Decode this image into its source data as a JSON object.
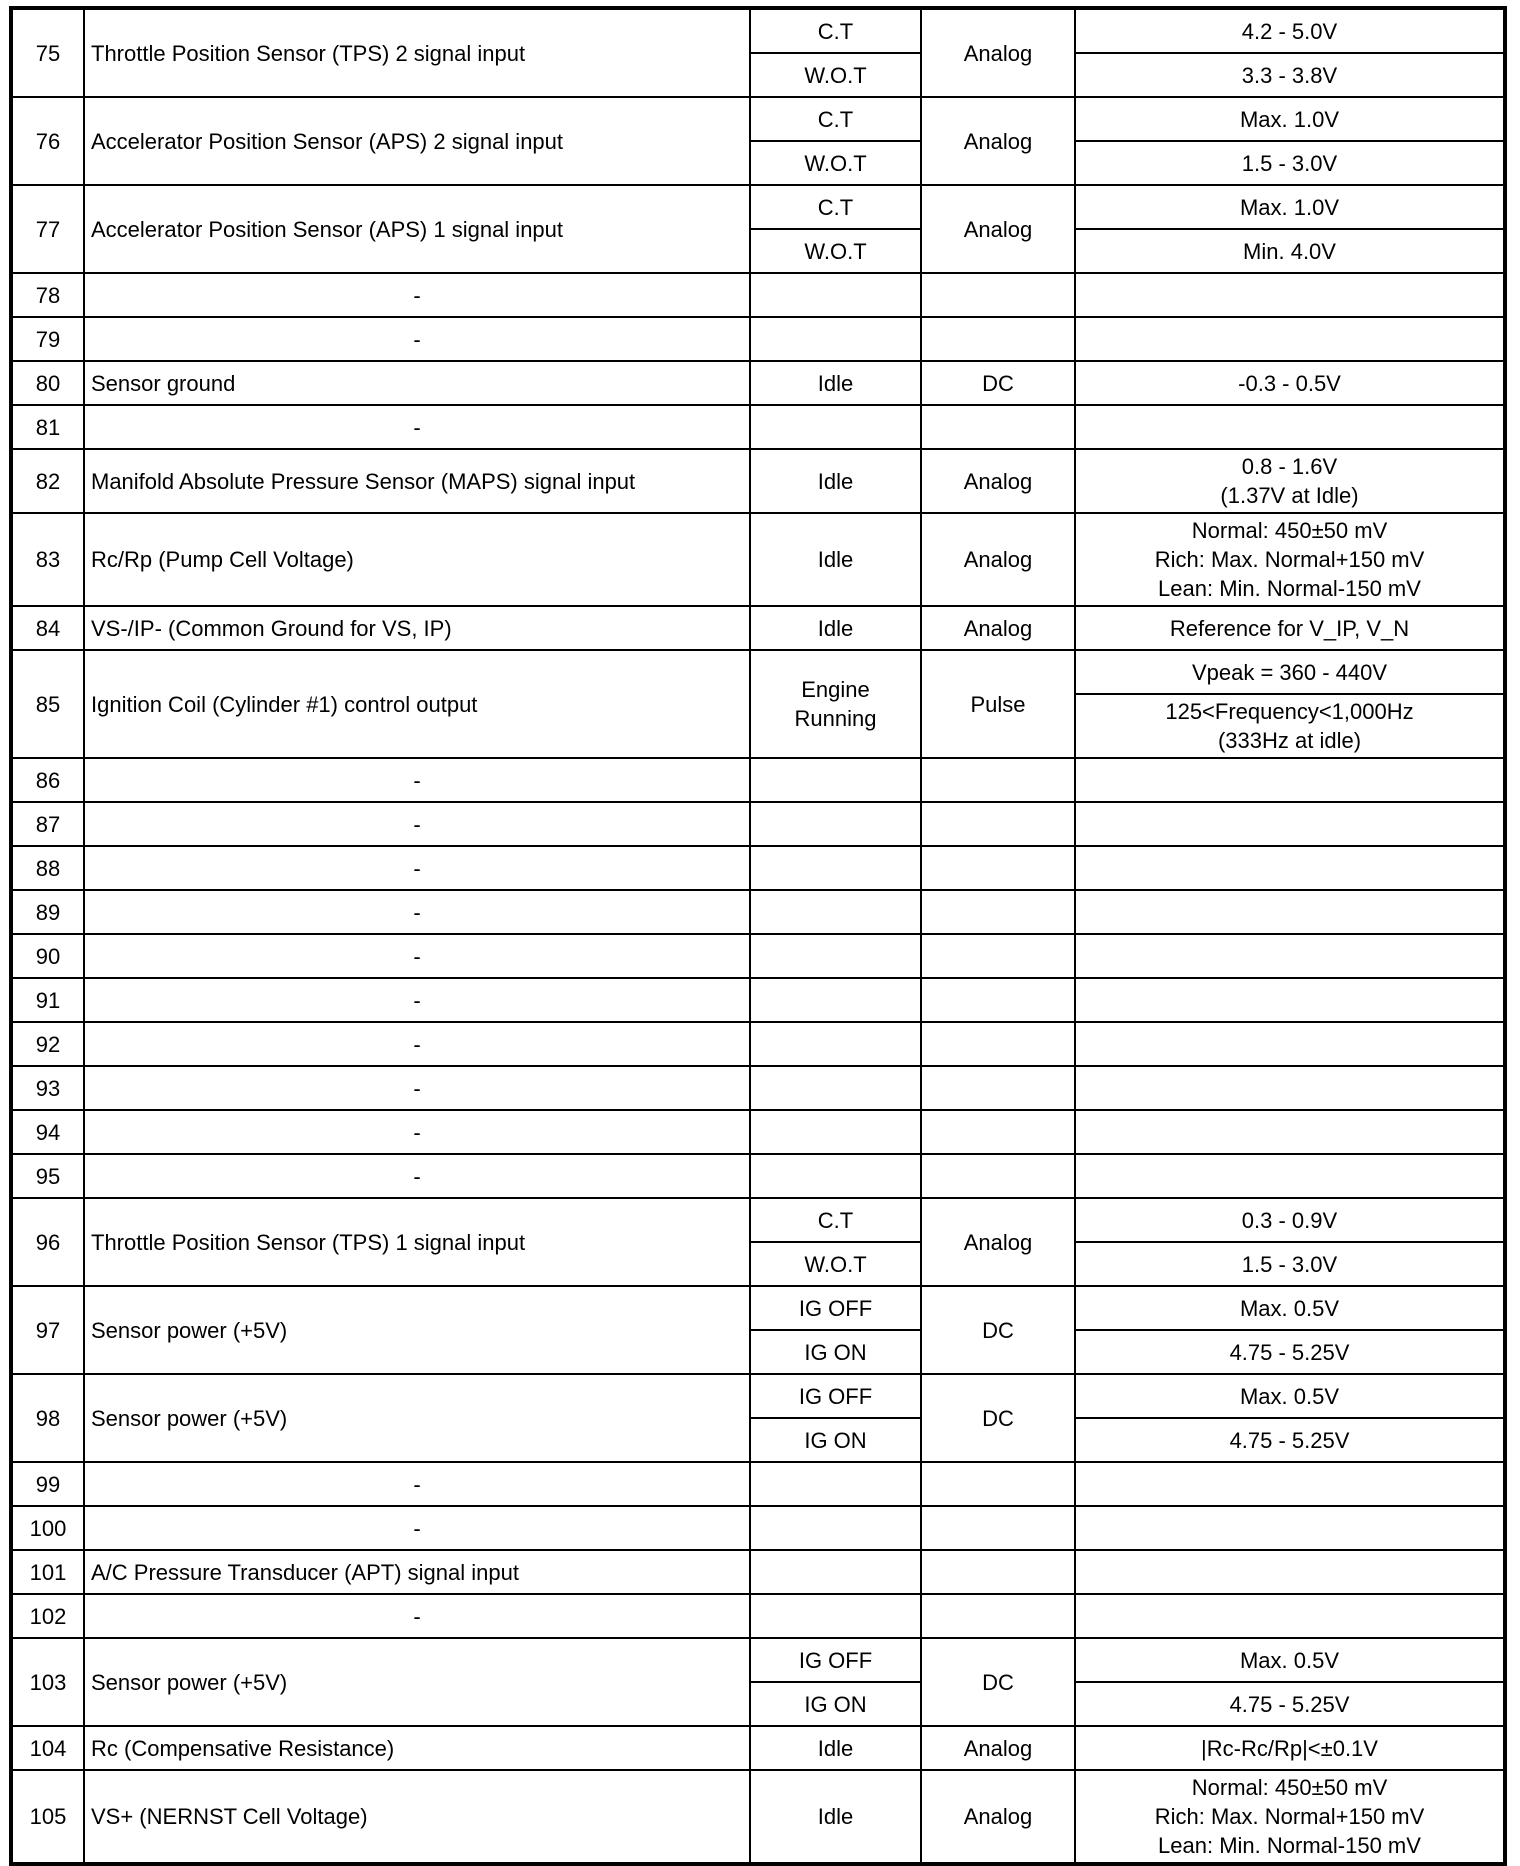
{
  "rows": [
    {
      "pin": "75",
      "desc": "Throttle Position Sensor (TPS) 2 signal input",
      "conditions": [
        "C.T",
        "W.O.T"
      ],
      "type": "Analog",
      "values": [
        "4.2 - 5.0V",
        "3.3 - 3.8V"
      ]
    },
    {
      "pin": "76",
      "desc": "Accelerator Position Sensor (APS) 2 signal input",
      "conditions": [
        "C.T",
        "W.O.T"
      ],
      "type": "Analog",
      "values": [
        "Max. 1.0V",
        "1.5 - 3.0V"
      ]
    },
    {
      "pin": "77",
      "desc": "Accelerator Position Sensor (APS) 1 signal input",
      "conditions": [
        "C.T",
        "W.O.T"
      ],
      "type": "Analog",
      "values": [
        "Max. 1.0V",
        "Min. 4.0V"
      ]
    },
    {
      "pin": "78",
      "desc": "-",
      "conditions": [
        ""
      ],
      "type": "",
      "values": [
        ""
      ]
    },
    {
      "pin": "79",
      "desc": "-",
      "conditions": [
        ""
      ],
      "type": "",
      "values": [
        ""
      ]
    },
    {
      "pin": "80",
      "desc": "Sensor ground",
      "conditions": [
        "Idle"
      ],
      "type": "DC",
      "values": [
        "-0.3 - 0.5V"
      ]
    },
    {
      "pin": "81",
      "desc": "-",
      "conditions": [
        ""
      ],
      "type": "",
      "values": [
        ""
      ]
    },
    {
      "pin": "82",
      "desc": "Manifold Absolute Pressure Sensor (MAPS) signal input",
      "conditions": [
        "Idle"
      ],
      "type": "Analog",
      "values": [
        "0.8 - 1.6V\n(1.37V at Idle)"
      ]
    },
    {
      "pin": "83",
      "desc": "Rc/Rp (Pump Cell Voltage)",
      "conditions": [
        "Idle"
      ],
      "type": "Analog",
      "values": [
        "Normal: 450±50 mV\nRich: Max. Normal+150 mV\nLean: Min. Normal-150 mV"
      ]
    },
    {
      "pin": "84",
      "desc": "VS-/IP- (Common Ground for VS, IP)",
      "conditions": [
        "Idle"
      ],
      "type": "Analog",
      "values": [
        "Reference for V_IP, V_N"
      ]
    },
    {
      "pin": "85",
      "desc": "Ignition Coil (Cylinder #1) control output",
      "conditions": [
        "Engine\nRunning"
      ],
      "type": "Pulse",
      "values": [
        "Vpeak = 360 - 440V",
        "125<Frequency<1,000Hz\n(333Hz at idle)"
      ]
    },
    {
      "pin": "86",
      "desc": "-",
      "conditions": [
        ""
      ],
      "type": "",
      "values": [
        ""
      ]
    },
    {
      "pin": "87",
      "desc": "-",
      "conditions": [
        ""
      ],
      "type": "",
      "values": [
        ""
      ]
    },
    {
      "pin": "88",
      "desc": "-",
      "conditions": [
        ""
      ],
      "type": "",
      "values": [
        ""
      ]
    },
    {
      "pin": "89",
      "desc": "-",
      "conditions": [
        ""
      ],
      "type": "",
      "values": [
        ""
      ]
    },
    {
      "pin": "90",
      "desc": "-",
      "conditions": [
        ""
      ],
      "type": "",
      "values": [
        ""
      ]
    },
    {
      "pin": "91",
      "desc": "-",
      "conditions": [
        ""
      ],
      "type": "",
      "values": [
        ""
      ]
    },
    {
      "pin": "92",
      "desc": "-",
      "conditions": [
        ""
      ],
      "type": "",
      "values": [
        ""
      ]
    },
    {
      "pin": "93",
      "desc": "-",
      "conditions": [
        ""
      ],
      "type": "",
      "values": [
        ""
      ]
    },
    {
      "pin": "94",
      "desc": "-",
      "conditions": [
        ""
      ],
      "type": "",
      "values": [
        ""
      ]
    },
    {
      "pin": "95",
      "desc": "-",
      "conditions": [
        ""
      ],
      "type": "",
      "values": [
        ""
      ]
    },
    {
      "pin": "96",
      "desc": "Throttle Position Sensor (TPS) 1 signal input",
      "conditions": [
        "C.T",
        "W.O.T"
      ],
      "type": "Analog",
      "values": [
        "0.3 - 0.9V",
        "1.5 - 3.0V"
      ]
    },
    {
      "pin": "97",
      "desc": "Sensor power (+5V)",
      "conditions": [
        "IG OFF",
        "IG ON"
      ],
      "type": "DC",
      "values": [
        "Max. 0.5V",
        "4.75 - 5.25V"
      ]
    },
    {
      "pin": "98",
      "desc": "Sensor power (+5V)",
      "conditions": [
        "IG OFF",
        "IG ON"
      ],
      "type": "DC",
      "values": [
        "Max. 0.5V",
        "4.75 - 5.25V"
      ]
    },
    {
      "pin": "99",
      "desc": "-",
      "conditions": [
        ""
      ],
      "type": "",
      "values": [
        ""
      ]
    },
    {
      "pin": "100",
      "desc": "-",
      "conditions": [
        ""
      ],
      "type": "",
      "values": [
        ""
      ]
    },
    {
      "pin": "101",
      "desc": "A/C Pressure Transducer (APT) signal input",
      "conditions": [
        ""
      ],
      "type": "",
      "values": [
        ""
      ]
    },
    {
      "pin": "102",
      "desc": "-",
      "conditions": [
        ""
      ],
      "type": "",
      "values": [
        ""
      ]
    },
    {
      "pin": "103",
      "desc": "Sensor power (+5V)",
      "conditions": [
        "IG OFF",
        "IG ON"
      ],
      "type": "DC",
      "values": [
        "Max. 0.5V",
        "4.75 - 5.25V"
      ]
    },
    {
      "pin": "104",
      "desc": "Rc (Compensative Resistance)",
      "conditions": [
        "Idle"
      ],
      "type": "Analog",
      "values": [
        "|Rc-Rc/Rp|<±0.1V"
      ]
    },
    {
      "pin": "105",
      "desc": "VS+ (NERNST Cell Voltage)",
      "conditions": [
        "Idle"
      ],
      "type": "Analog",
      "values": [
        "Normal: 450±50 mV\nRich: Max. Normal+150 mV\nLean: Min. Normal-150 mV"
      ]
    }
  ]
}
